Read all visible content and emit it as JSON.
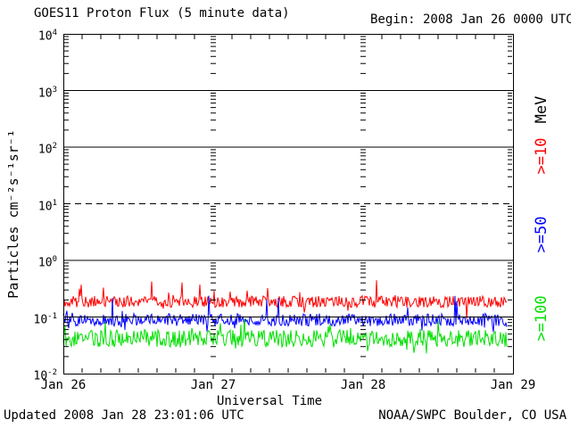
{
  "header": {
    "title": "GOES11 Proton Flux (5 minute data)",
    "begin": "Begin: 2008 Jan 26 0000 UTC"
  },
  "footer": {
    "updated": "Updated 2008 Jan 28 23:01:06 UTC",
    "source": "NOAA/SWPC Boulder, CO USA"
  },
  "chart_data": {
    "type": "line",
    "title": "GOES11 Proton Flux (5 minute data)",
    "xlabel": "Universal Time",
    "ylabel": "Particles cm⁻²s⁻¹sr⁻¹",
    "right_axis_unit": "MeV",
    "x_start": "2008 Jan 26 0000 UTC",
    "x_end": "2008 Jan 29 0000 UTC",
    "xticks": [
      "Jan 26",
      "Jan 27",
      "Jan 28",
      "Jan 29"
    ],
    "ylog_range": [
      -2,
      4
    ],
    "ytick_exponents": [
      4,
      3,
      2,
      1,
      0,
      -1,
      -2
    ],
    "grid": "decade lines",
    "decade_gridlines": [
      {
        "exponent": 3,
        "style": "solid"
      },
      {
        "exponent": 2,
        "style": "solid"
      },
      {
        "exponent": 1,
        "style": "dashed"
      },
      {
        "exponent": 0,
        "style": "solid"
      },
      {
        "exponent": -1,
        "style": "solid"
      }
    ],
    "legend_position": "right, rotated",
    "legend": [
      {
        "label": "MeV",
        "color": "#000000"
      },
      {
        "label": ">=10",
        "color": "#ff0000"
      },
      {
        "label": ">=50",
        "color": "#0000ff"
      },
      {
        "label": ">=100",
        "color": "#00e000"
      }
    ],
    "cadence_minutes": 5,
    "data_end_fraction_of_axis": 0.986,
    "series": [
      {
        "name": ">=10 MeV",
        "color": "#ff0000",
        "seed": 11,
        "typical_flux": 0.19,
        "approx_flux_range": [
          0.1,
          0.55
        ],
        "log_mean": -0.73,
        "log_noise": 0.1,
        "spike_prob": 0.05,
        "spike_amp": 0.45,
        "dip_prob": 0.03,
        "dip_amp": 0.25
      },
      {
        "name": ">=50 MeV",
        "color": "#0000ff",
        "seed": 52,
        "typical_flux": 0.09,
        "approx_flux_range": [
          0.05,
          0.27
        ],
        "log_mean": -1.05,
        "log_noise": 0.11,
        "spike_prob": 0.04,
        "spike_amp": 0.4,
        "dip_prob": 0.04,
        "dip_amp": 0.2
      },
      {
        "name": ">=100 MeV",
        "color": "#00e000",
        "seed": 103,
        "typical_flux": 0.042,
        "approx_flux_range": [
          0.02,
          0.1
        ],
        "log_mean": -1.38,
        "log_noise": 0.15,
        "spike_prob": 0.04,
        "spike_amp": 0.3,
        "dip_prob": 0.04,
        "dip_amp": 0.15
      }
    ]
  }
}
